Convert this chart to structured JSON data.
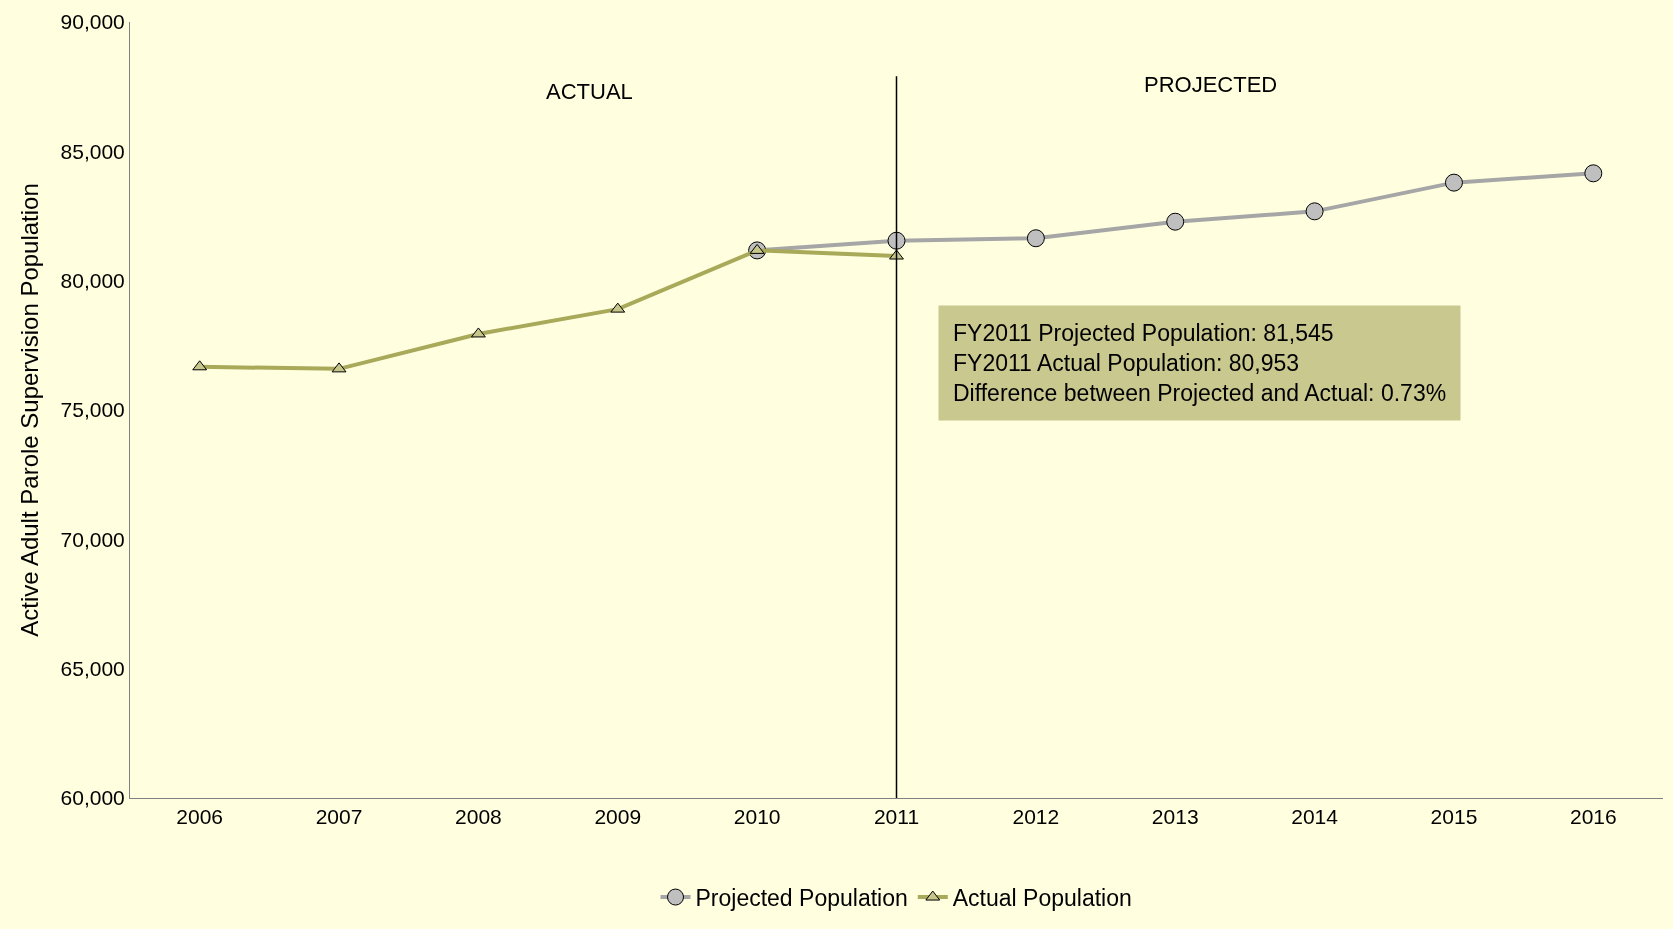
{
  "chart_data": {
    "type": "line",
    "ylabel": "Active Adult Parole Supervision Population",
    "categories": [
      "2006",
      "2007",
      "2008",
      "2009",
      "2010",
      "2011",
      "2012",
      "2013",
      "2014",
      "2015",
      "2016"
    ],
    "series": [
      {
        "name": "Projected Population",
        "color": "#a6a6a6",
        "marker": "circle",
        "values": [
          null,
          null,
          null,
          null,
          81170,
          81545,
          81640,
          82280,
          82680,
          83790,
          84150
        ]
      },
      {
        "name": "Actual Population",
        "color": "#a9a95a",
        "marker": "triangle",
        "values": [
          76670,
          76590,
          77940,
          78900,
          81170,
          80953,
          null,
          null,
          null,
          null,
          null
        ]
      }
    ],
    "ylim": [
      60000,
      90000
    ],
    "yticks": [
      {
        "value": 60000,
        "label": "60,000"
      },
      {
        "value": 65000,
        "label": "65,000"
      },
      {
        "value": 70000,
        "label": "70,000"
      },
      {
        "value": 75000,
        "label": "75,000"
      },
      {
        "value": 80000,
        "label": "80,000"
      },
      {
        "value": 85000,
        "label": "85,000"
      },
      {
        "value": 90000,
        "label": "90,000"
      }
    ],
    "ref_lines": [
      {
        "axis": "x",
        "value": "2011",
        "color": "#000000"
      }
    ],
    "annotations": [
      "ACTUAL",
      "PROJECTED",
      "FY2011 Projected Population: 81,545\nFY2011 Actual Population: 80,953\nDifference between Projected and Actual: 0.73%"
    ],
    "legend": "bottom",
    "grid": false
  }
}
